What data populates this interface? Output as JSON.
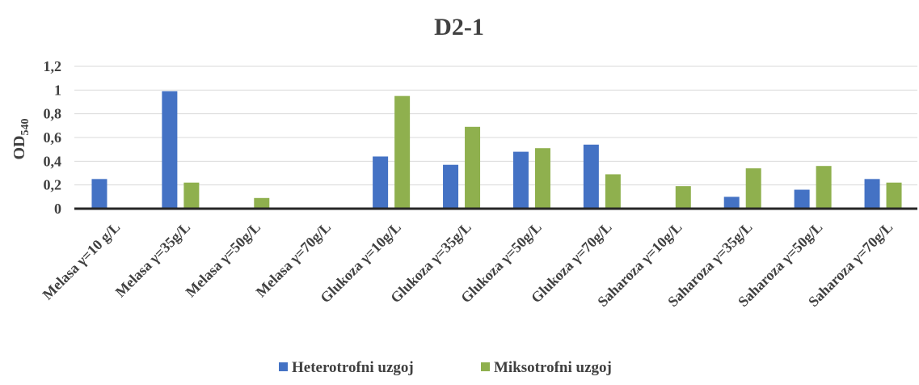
{
  "chart_data": {
    "type": "bar",
    "title": "D2-1",
    "ylabel_main": "OD",
    "ylabel_sub": "540",
    "xlabel": "",
    "ylim": [
      0,
      1.2
    ],
    "yticks": [
      0,
      0.2,
      0.4,
      0.6,
      0.8,
      1,
      1.2
    ],
    "ytick_labels": [
      "0",
      "0,2",
      "0,4",
      "0,6",
      "0,8",
      "1",
      "1,2"
    ],
    "grid": true,
    "legend_position": "bottom",
    "categories": [
      "Melasa γ=10 g/L",
      "Melasa γ=35g/L",
      "Melasa γ=50g/L",
      "Melasa γ=70g/L",
      "Glukoza γ=10g/L",
      "Glukoza γ=35g/L",
      "Glukoza γ=50g/L",
      "Glukoza γ=70g/L",
      "Saharoza γ=10g/L",
      "Saharoza γ=35g/L",
      "Saharoza γ=50g/L",
      "Saharoza γ=70g/L"
    ],
    "series": [
      {
        "name": "Heterotrofni uzgoj",
        "color": "#4472C4",
        "values": [
          0.25,
          0.99,
          0,
          0,
          0.44,
          0.37,
          0.48,
          0.54,
          0,
          0.1,
          0.16,
          0.25
        ]
      },
      {
        "name": "Miksotrofni uzgoj",
        "color": "#8FB04E",
        "values": [
          0,
          0.22,
          0.09,
          0,
          0.95,
          0.69,
          0.51,
          0.29,
          0.19,
          0.34,
          0.36,
          0.22
        ]
      }
    ]
  }
}
